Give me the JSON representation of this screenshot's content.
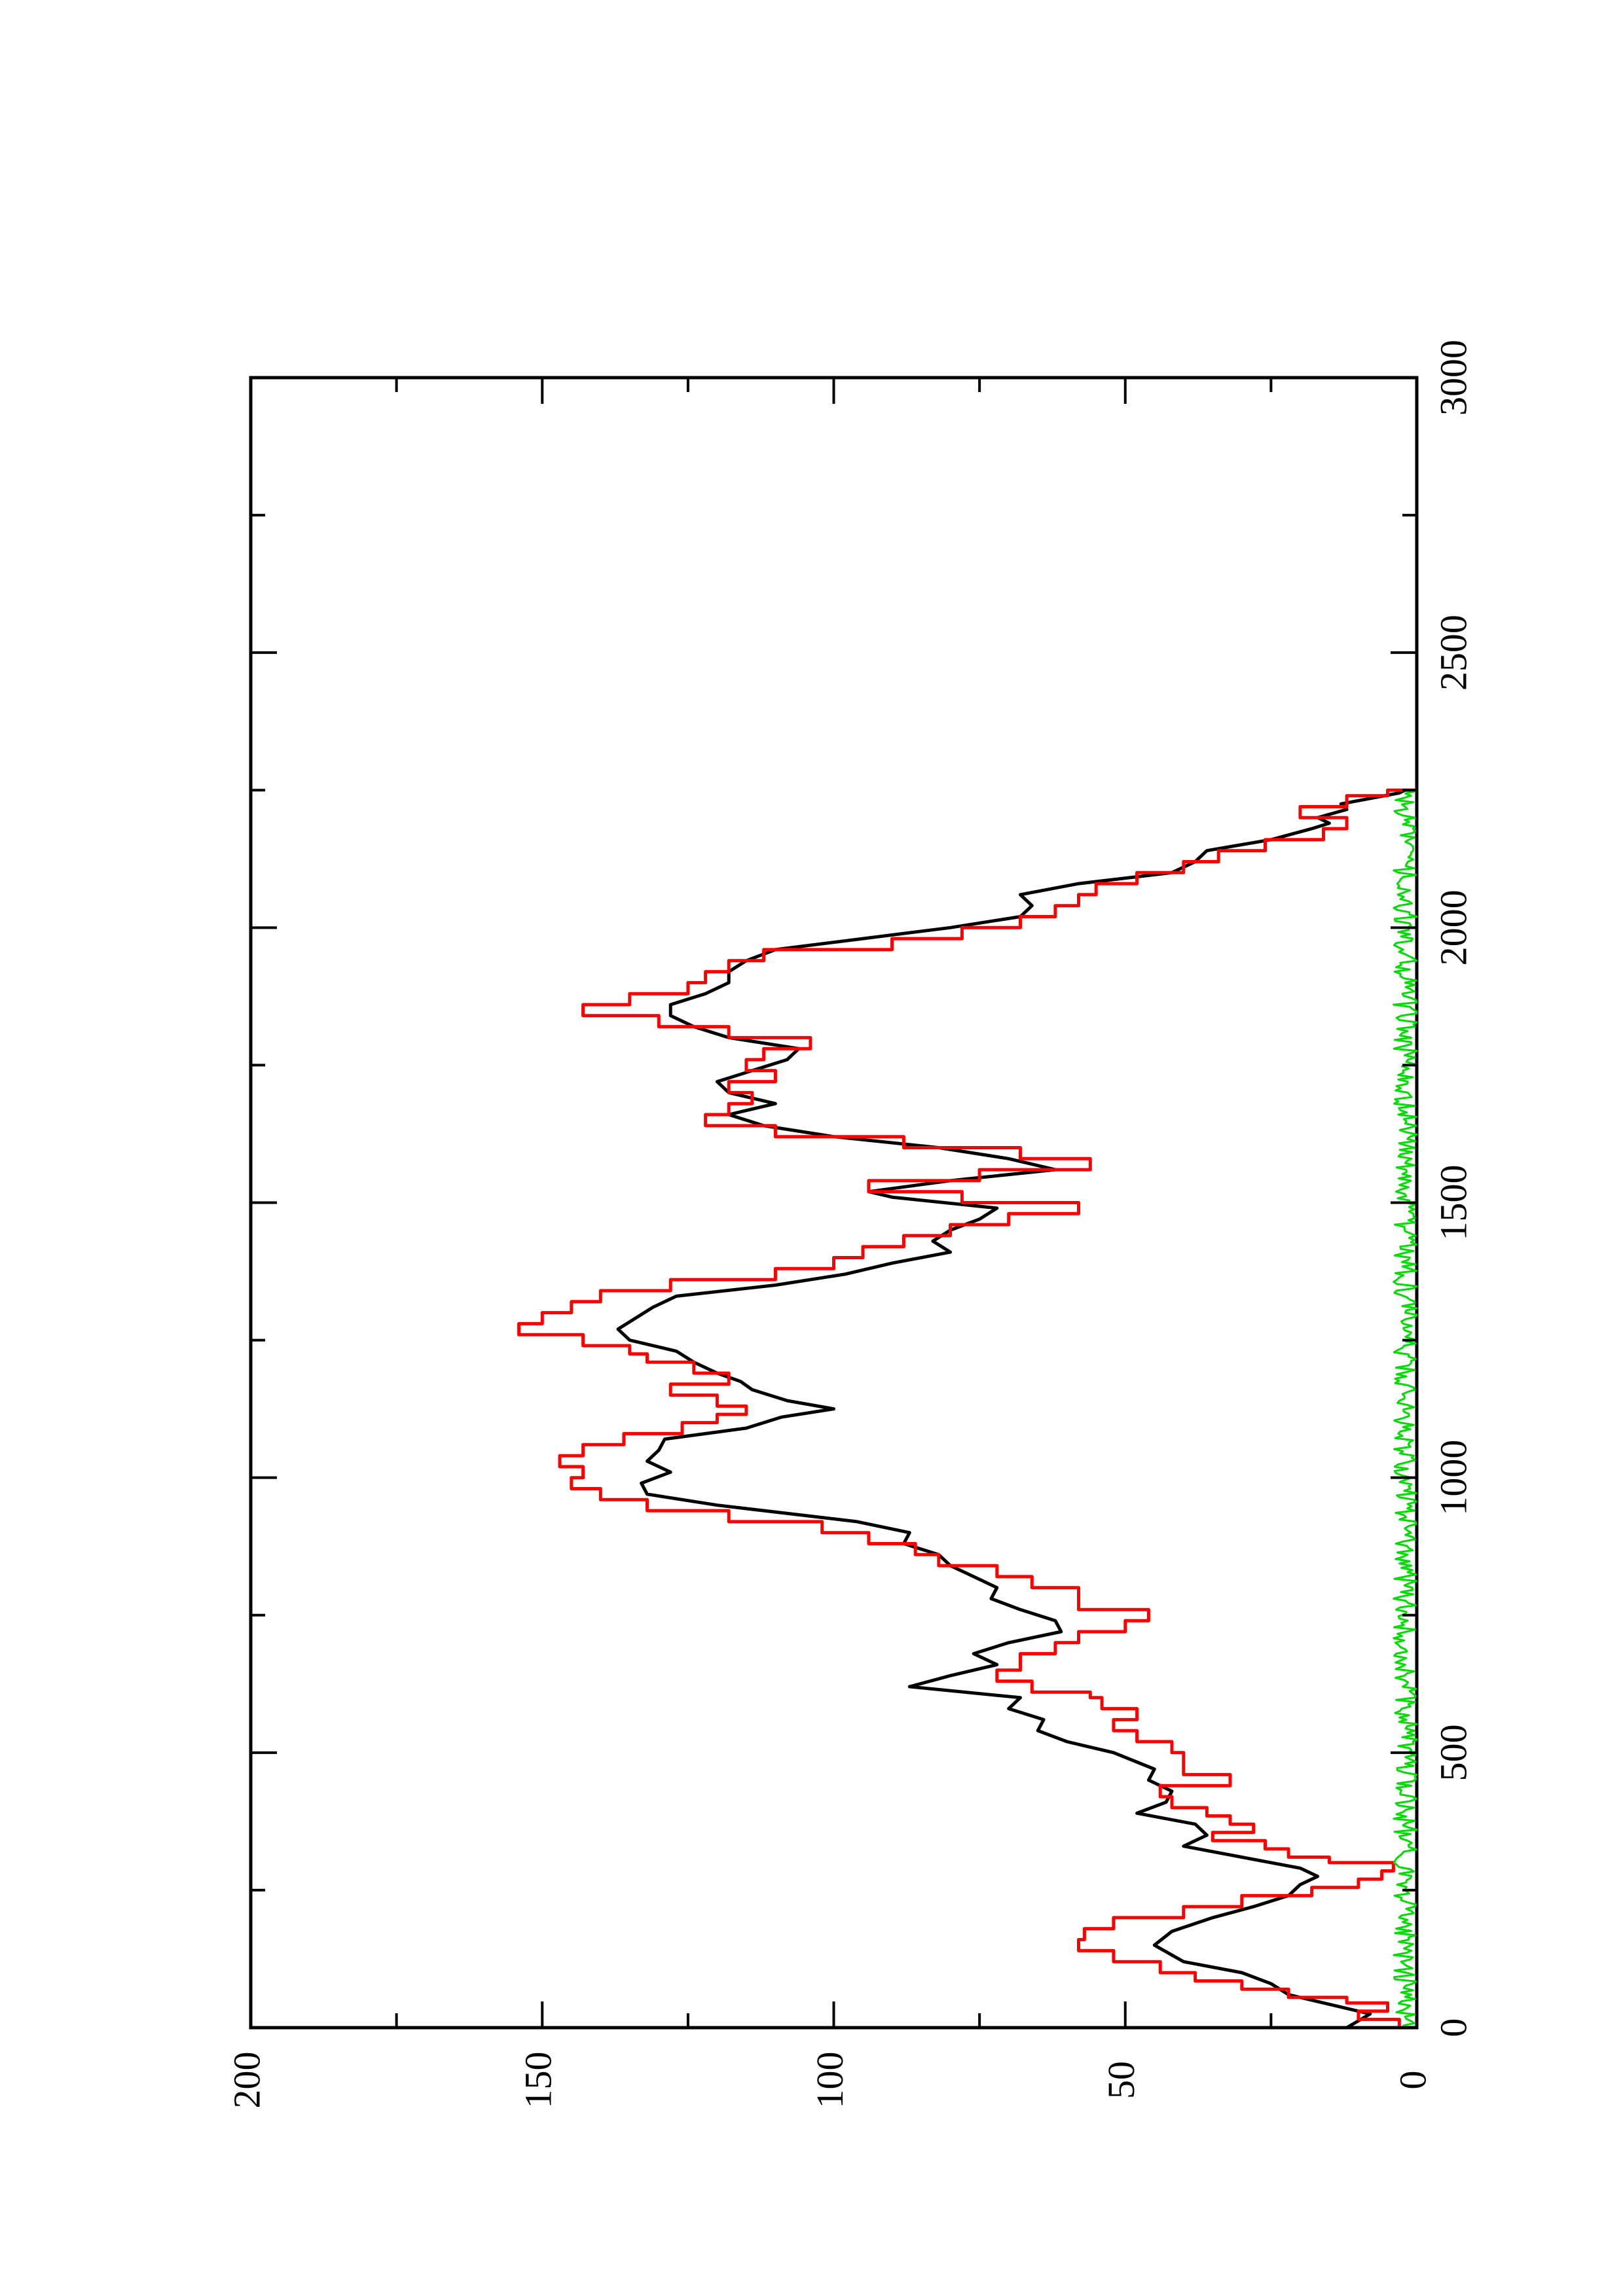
{
  "chart_data": {
    "type": "line",
    "orientation": "rotated-90-ccw",
    "title": "",
    "xlabel": "",
    "ylabel": "",
    "xlim": [
      0,
      3000
    ],
    "ylim": [
      0,
      200
    ],
    "x_ticks": [
      0,
      500,
      1000,
      1500,
      2000,
      2500,
      3000
    ],
    "x_tick_labels": [
      "0",
      "500",
      "1000",
      "1500",
      "2000",
      "2500",
      "3000"
    ],
    "y_ticks": [
      0,
      50,
      100,
      150,
      200
    ],
    "y_tick_labels": [
      "0",
      "50",
      "100",
      "150",
      "200"
    ],
    "grid": false,
    "legend": "none",
    "series": [
      {
        "color": "#000000",
        "style": "line",
        "points": [
          [
            0,
            12
          ],
          [
            25,
            8
          ],
          [
            40,
            14
          ],
          [
            60,
            22
          ],
          [
            80,
            25
          ],
          [
            100,
            30
          ],
          [
            120,
            40
          ],
          [
            150,
            45
          ],
          [
            175,
            42
          ],
          [
            200,
            35
          ],
          [
            220,
            28
          ],
          [
            240,
            22
          ],
          [
            260,
            20
          ],
          [
            275,
            17
          ],
          [
            290,
            20
          ],
          [
            310,
            30
          ],
          [
            330,
            40
          ],
          [
            350,
            36
          ],
          [
            370,
            38
          ],
          [
            390,
            48
          ],
          [
            410,
            43
          ],
          [
            430,
            42
          ],
          [
            450,
            46
          ],
          [
            470,
            45
          ],
          [
            500,
            52
          ],
          [
            520,
            60
          ],
          [
            540,
            65
          ],
          [
            560,
            64
          ],
          [
            580,
            70
          ],
          [
            600,
            68
          ],
          [
            620,
            87
          ],
          [
            640,
            80
          ],
          [
            660,
            72
          ],
          [
            680,
            76
          ],
          [
            700,
            70
          ],
          [
            720,
            61
          ],
          [
            740,
            62
          ],
          [
            760,
            68
          ],
          [
            780,
            73
          ],
          [
            800,
            72
          ],
          [
            820,
            76
          ],
          [
            840,
            80
          ],
          [
            860,
            82
          ],
          [
            880,
            88
          ],
          [
            900,
            87
          ],
          [
            920,
            96
          ],
          [
            950,
            120
          ],
          [
            970,
            132
          ],
          [
            990,
            133
          ],
          [
            1010,
            128
          ],
          [
            1030,
            132
          ],
          [
            1050,
            130
          ],
          [
            1070,
            129
          ],
          [
            1090,
            115
          ],
          [
            1110,
            109
          ],
          [
            1125,
            100
          ],
          [
            1140,
            108
          ],
          [
            1160,
            114
          ],
          [
            1175,
            116
          ],
          [
            1190,
            120
          ],
          [
            1210,
            124
          ],
          [
            1230,
            127
          ],
          [
            1250,
            135
          ],
          [
            1270,
            137
          ],
          [
            1290,
            134
          ],
          [
            1310,
            131
          ],
          [
            1330,
            127
          ],
          [
            1350,
            110
          ],
          [
            1370,
            98
          ],
          [
            1390,
            90
          ],
          [
            1410,
            80
          ],
          [
            1430,
            83
          ],
          [
            1450,
            80
          ],
          [
            1470,
            75
          ],
          [
            1490,
            72
          ],
          [
            1510,
            90
          ],
          [
            1520,
            94
          ],
          [
            1540,
            80
          ],
          [
            1560,
            62
          ],
          [
            1580,
            70
          ],
          [
            1600,
            82
          ],
          [
            1620,
            100
          ],
          [
            1640,
            112
          ],
          [
            1660,
            118
          ],
          [
            1680,
            110
          ],
          [
            1700,
            118
          ],
          [
            1720,
            120
          ],
          [
            1740,
            114
          ],
          [
            1760,
            108
          ],
          [
            1780,
            106
          ],
          [
            1800,
            118
          ],
          [
            1820,
            124
          ],
          [
            1840,
            128
          ],
          [
            1860,
            128
          ],
          [
            1880,
            122
          ],
          [
            1900,
            118
          ],
          [
            1920,
            118
          ],
          [
            1940,
            115
          ],
          [
            1960,
            110
          ],
          [
            1980,
            95
          ],
          [
            2000,
            80
          ],
          [
            2020,
            68
          ],
          [
            2040,
            66
          ],
          [
            2060,
            68
          ],
          [
            2080,
            58
          ],
          [
            2100,
            42
          ],
          [
            2120,
            38
          ],
          [
            2140,
            36
          ],
          [
            2160,
            25
          ],
          [
            2180,
            18
          ],
          [
            2190,
            15
          ],
          [
            2200,
            17
          ],
          [
            2215,
            12
          ],
          [
            2225,
            13
          ],
          [
            2235,
            8
          ],
          [
            2245,
            3
          ],
          [
            2250,
            2
          ]
        ]
      },
      {
        "color": "#ff0000",
        "style": "step",
        "points": [
          [
            0,
            3
          ],
          [
            15,
            10
          ],
          [
            30,
            5
          ],
          [
            45,
            12
          ],
          [
            55,
            22
          ],
          [
            70,
            30
          ],
          [
            85,
            38
          ],
          [
            100,
            44
          ],
          [
            120,
            52
          ],
          [
            140,
            58
          ],
          [
            160,
            57
          ],
          [
            180,
            52
          ],
          [
            200,
            40
          ],
          [
            220,
            30
          ],
          [
            240,
            18
          ],
          [
            255,
            10
          ],
          [
            270,
            6
          ],
          [
            285,
            4
          ],
          [
            300,
            15
          ],
          [
            310,
            22
          ],
          [
            325,
            26
          ],
          [
            340,
            35
          ],
          [
            355,
            28
          ],
          [
            370,
            32
          ],
          [
            385,
            36
          ],
          [
            400,
            42
          ],
          [
            420,
            44
          ],
          [
            440,
            32
          ],
          [
            460,
            40
          ],
          [
            480,
            40
          ],
          [
            500,
            42
          ],
          [
            520,
            48
          ],
          [
            540,
            52
          ],
          [
            560,
            48
          ],
          [
            580,
            54
          ],
          [
            600,
            56
          ],
          [
            610,
            66
          ],
          [
            630,
            72
          ],
          [
            650,
            68
          ],
          [
            680,
            62
          ],
          [
            700,
            58
          ],
          [
            720,
            50
          ],
          [
            740,
            46
          ],
          [
            760,
            58
          ],
          [
            780,
            58
          ],
          [
            800,
            66
          ],
          [
            820,
            72
          ],
          [
            840,
            82
          ],
          [
            860,
            86
          ],
          [
            880,
            94
          ],
          [
            900,
            102
          ],
          [
            920,
            118
          ],
          [
            940,
            132
          ],
          [
            960,
            140
          ],
          [
            980,
            145
          ],
          [
            1000,
            143
          ],
          [
            1020,
            147
          ],
          [
            1040,
            143
          ],
          [
            1060,
            136
          ],
          [
            1080,
            126
          ],
          [
            1100,
            120
          ],
          [
            1115,
            115
          ],
          [
            1130,
            120
          ],
          [
            1150,
            128
          ],
          [
            1170,
            118
          ],
          [
            1190,
            124
          ],
          [
            1210,
            132
          ],
          [
            1225,
            135
          ],
          [
            1240,
            143
          ],
          [
            1260,
            154
          ],
          [
            1280,
            150
          ],
          [
            1300,
            145
          ],
          [
            1320,
            140
          ],
          [
            1340,
            128
          ],
          [
            1360,
            110
          ],
          [
            1380,
            100
          ],
          [
            1400,
            95
          ],
          [
            1420,
            88
          ],
          [
            1440,
            80
          ],
          [
            1460,
            70
          ],
          [
            1480,
            58
          ],
          [
            1500,
            78
          ],
          [
            1520,
            94
          ],
          [
            1540,
            75
          ],
          [
            1560,
            56
          ],
          [
            1580,
            68
          ],
          [
            1600,
            88
          ],
          [
            1620,
            110
          ],
          [
            1640,
            122
          ],
          [
            1660,
            118
          ],
          [
            1680,
            114
          ],
          [
            1700,
            118
          ],
          [
            1720,
            110
          ],
          [
            1740,
            115
          ],
          [
            1760,
            112
          ],
          [
            1780,
            104
          ],
          [
            1800,
            118
          ],
          [
            1820,
            130
          ],
          [
            1840,
            143
          ],
          [
            1860,
            135
          ],
          [
            1880,
            125
          ],
          [
            1900,
            122
          ],
          [
            1920,
            118
          ],
          [
            1940,
            112
          ],
          [
            1960,
            90
          ],
          [
            1980,
            78
          ],
          [
            2000,
            68
          ],
          [
            2020,
            62
          ],
          [
            2040,
            58
          ],
          [
            2060,
            55
          ],
          [
            2080,
            48
          ],
          [
            2100,
            40
          ],
          [
            2120,
            34
          ],
          [
            2140,
            26
          ],
          [
            2160,
            16
          ],
          [
            2180,
            12
          ],
          [
            2200,
            20
          ],
          [
            2220,
            12
          ],
          [
            2240,
            5
          ],
          [
            2250,
            0
          ]
        ]
      },
      {
        "color": "#00dd00",
        "style": "noise",
        "x_range": [
          0,
          2250
        ],
        "value_range": [
          0,
          4
        ]
      }
    ]
  }
}
